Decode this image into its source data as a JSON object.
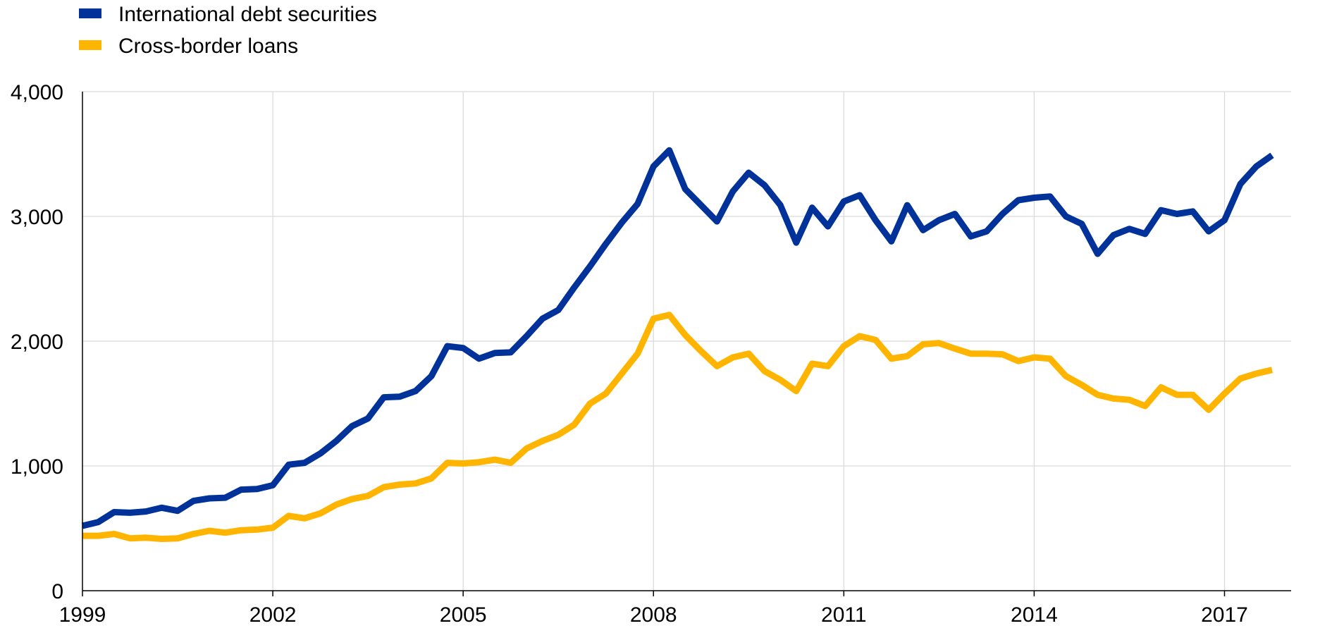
{
  "chart_data": {
    "type": "line",
    "title": "",
    "xlabel": "",
    "ylabel": "",
    "xlim": [
      1999,
      2018.05
    ],
    "ylim": [
      0,
      4000
    ],
    "y_ticks": [
      0,
      1000,
      2000,
      3000,
      4000
    ],
    "y_tick_labels": [
      "0",
      "1,000",
      "2,000",
      "3,000",
      "4,000"
    ],
    "x_ticks": [
      1999,
      2002,
      2005,
      2008,
      2011,
      2014,
      2017
    ],
    "x_tick_labels": [
      "1999",
      "2002",
      "2005",
      "2008",
      "2011",
      "2014",
      "2017"
    ],
    "grid": true,
    "legend_position": "top-left",
    "colors": {
      "debt": "#003299",
      "loans": "#FFB400",
      "grid": "#d9d9d9",
      "axis": "#000000"
    },
    "x": [
      1999.0,
      1999.25,
      1999.5,
      1999.75,
      2000.0,
      2000.25,
      2000.5,
      2000.75,
      2001.0,
      2001.25,
      2001.5,
      2001.75,
      2002.0,
      2002.25,
      2002.5,
      2002.75,
      2003.0,
      2003.25,
      2003.5,
      2003.75,
      2004.0,
      2004.25,
      2004.5,
      2004.75,
      2005.0,
      2005.25,
      2005.5,
      2005.75,
      2006.0,
      2006.25,
      2006.5,
      2006.75,
      2007.0,
      2007.25,
      2007.5,
      2007.75,
      2008.0,
      2008.25,
      2008.5,
      2008.75,
      2009.0,
      2009.25,
      2009.5,
      2009.75,
      2010.0,
      2010.25,
      2010.5,
      2010.75,
      2011.0,
      2011.25,
      2011.5,
      2011.75,
      2012.0,
      2012.25,
      2012.5,
      2012.75,
      2013.0,
      2013.25,
      2013.5,
      2013.75,
      2014.0,
      2014.25,
      2014.5,
      2014.75,
      2015.0,
      2015.25,
      2015.5,
      2015.75,
      2016.0,
      2016.25,
      2016.5,
      2016.75,
      2017.0,
      2017.25,
      2017.5,
      2017.75
    ],
    "series": [
      {
        "name": "International debt securities",
        "color": "#003299",
        "values": [
          520,
          550,
          630,
          625,
          635,
          665,
          640,
          720,
          740,
          745,
          810,
          815,
          845,
          1010,
          1025,
          1100,
          1200,
          1320,
          1380,
          1550,
          1555,
          1600,
          1720,
          1960,
          1945,
          1860,
          1905,
          1910,
          2040,
          2180,
          2250,
          2430,
          2600,
          2780,
          2950,
          3100,
          3400,
          3530,
          3220,
          3090,
          2960,
          3200,
          3350,
          3250,
          3090,
          2790,
          3070,
          2920,
          3120,
          3170,
          2970,
          2800,
          3090,
          2890,
          2970,
          3020,
          2840,
          2880,
          3020,
          3130,
          3150,
          3160,
          3000,
          2940,
          2700,
          2850,
          2900,
          2860,
          3050,
          3020,
          3040,
          2880,
          2970,
          3260,
          3400,
          3490
        ]
      },
      {
        "name": "Cross-border loans",
        "color": "#FFB400",
        "values": [
          440,
          440,
          455,
          420,
          425,
          415,
          420,
          455,
          480,
          465,
          485,
          490,
          505,
          600,
          580,
          620,
          690,
          735,
          760,
          830,
          850,
          860,
          900,
          1025,
          1020,
          1030,
          1050,
          1025,
          1140,
          1200,
          1250,
          1330,
          1500,
          1580,
          1740,
          1900,
          2180,
          2210,
          2050,
          1920,
          1800,
          1870,
          1900,
          1760,
          1690,
          1600,
          1820,
          1800,
          1960,
          2040,
          2010,
          1860,
          1880,
          1975,
          1985,
          1940,
          1900,
          1900,
          1895,
          1840,
          1870,
          1860,
          1720,
          1650,
          1570,
          1540,
          1530,
          1480,
          1630,
          1570,
          1570,
          1450,
          1580,
          1700,
          1740,
          1770
        ]
      }
    ]
  }
}
